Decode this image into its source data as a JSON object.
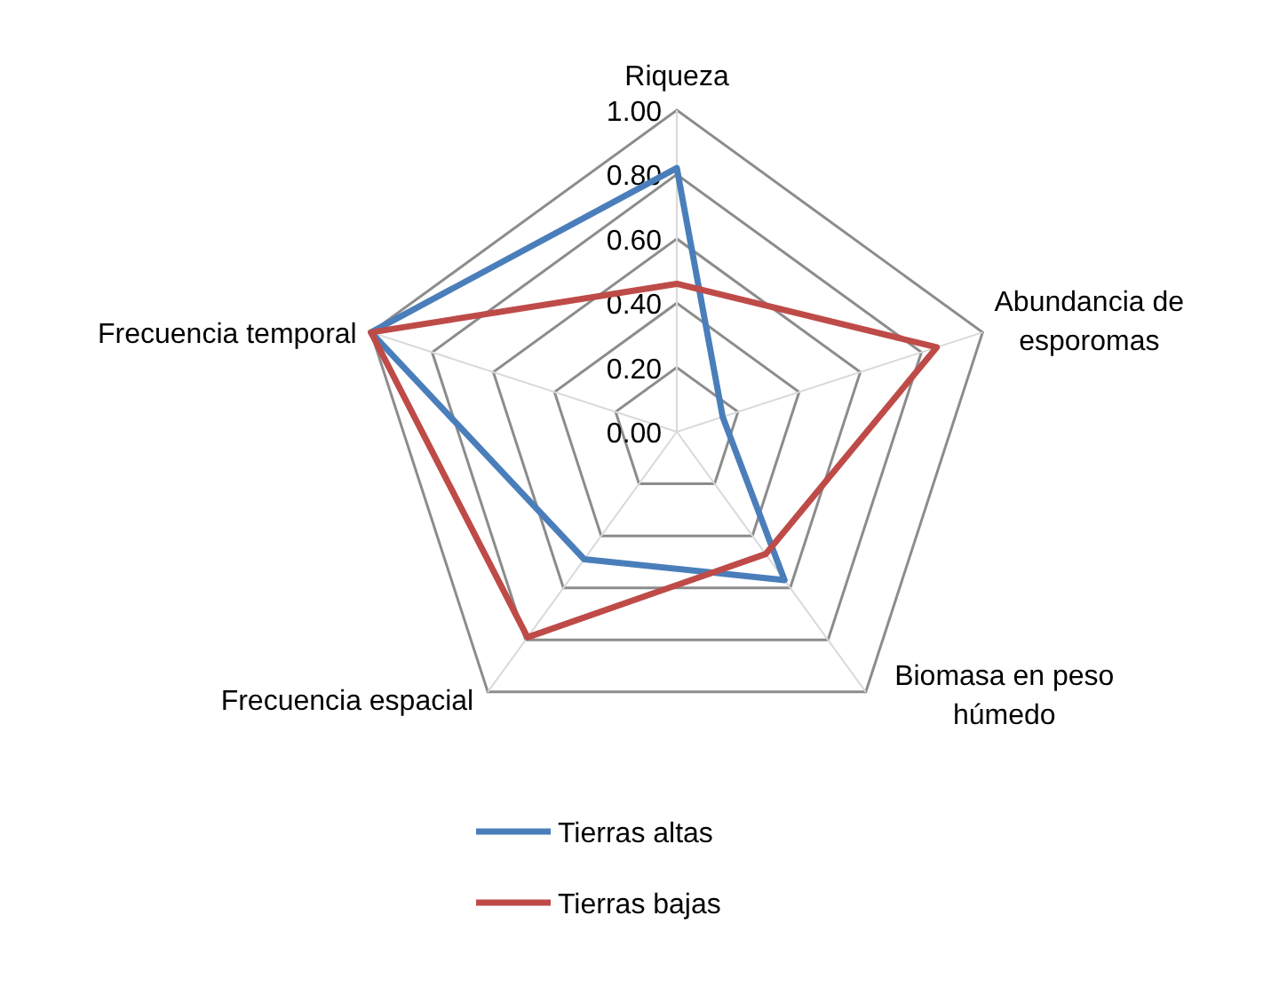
{
  "chart_data": {
    "type": "radar",
    "categories": [
      "Riqueza",
      "Abundancia de esporomas",
      "Biomasa en peso húmedo",
      "Frecuencia espacial",
      "Frecuencia temporal"
    ],
    "series": [
      {
        "name": "Tierras altas",
        "color": "#4a7ebb",
        "values": [
          0.82,
          0.15,
          0.57,
          0.49,
          1.0
        ]
      },
      {
        "name": "Tierras bajas",
        "color": "#be4b48",
        "values": [
          0.46,
          0.85,
          0.47,
          0.79,
          1.0
        ]
      }
    ],
    "ylim": [
      0,
      1
    ],
    "yticks": [
      {
        "value": 0,
        "label": "0.00"
      },
      {
        "value": 0.2,
        "label": "0.20"
      },
      {
        "value": 0.4,
        "label": "0.40"
      },
      {
        "value": 0.6,
        "label": "0.60"
      },
      {
        "value": 0.8,
        "label": "0.80"
      },
      {
        "value": 1,
        "label": "1.00"
      }
    ],
    "grid": true,
    "legend": "bottom",
    "line_style": "solid",
    "marker": "none"
  }
}
